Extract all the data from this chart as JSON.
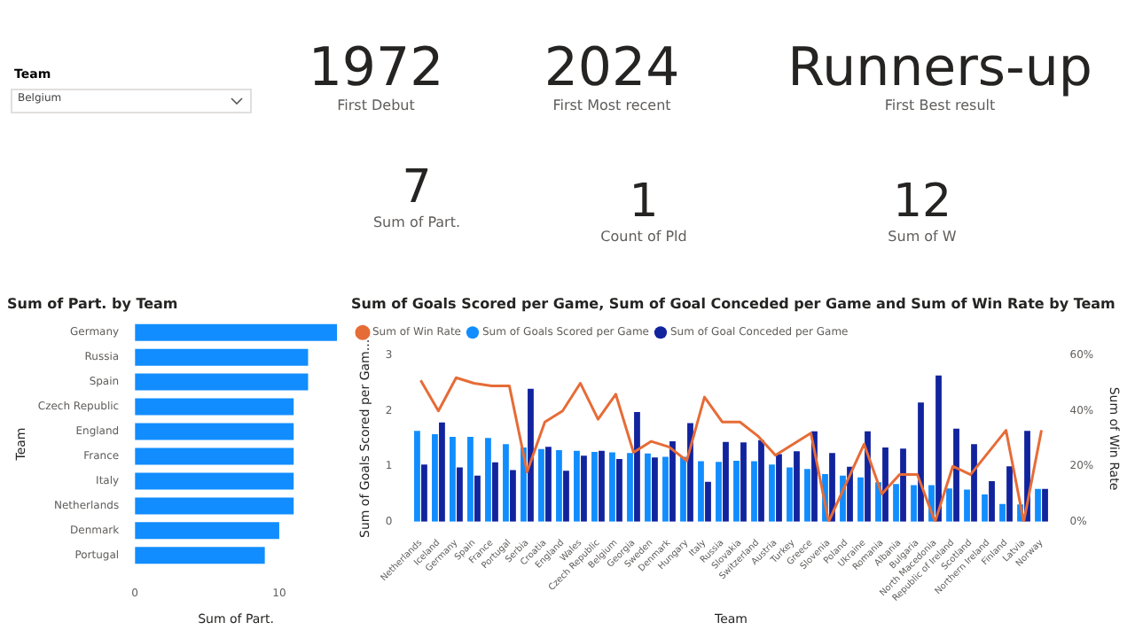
{
  "chart_data": [
    {
      "type": "other",
      "annotations": [
        "Team",
        "Belgium",
        "1972",
        "First Debut",
        "2024",
        "First Most recent",
        "Runners-up",
        "First Best result",
        "7",
        "Sum of Part.",
        "1",
        "Count of Pld",
        "12",
        "Sum of W"
      ]
    },
    {
      "type": "bar",
      "orientation": "horizontal",
      "title": "Sum of Part. by Team",
      "xlabel": "Sum of Part.",
      "ylabel": "Team",
      "categories": [
        "Germany",
        "Russia",
        "Spain",
        "Czech Republic",
        "England",
        "France",
        "Italy",
        "Netherlands",
        "Denmark",
        "Portugal"
      ],
      "values": [
        14,
        12,
        12,
        11,
        11,
        11,
        11,
        11,
        10,
        9
      ],
      "color": "#118dff",
      "xlim": [
        0,
        14
      ],
      "xticks": [
        0,
        10
      ]
    },
    {
      "type": "bar",
      "title": "Sum of Goals Scored per Game, Sum of Goal Conceded per Game and Sum of Win Rate by Team",
      "xlabel": "Team",
      "ylabel": "Sum of Goals Scored per Gam...",
      "y2label": "Sum of Win Rate",
      "legend": "top left",
      "categories": [
        "Netherlands",
        "Iceland",
        "Germany",
        "Spain",
        "France",
        "Portugal",
        "Serbia",
        "Croatia",
        "England",
        "Wales",
        "Czech Republic",
        "Belgium",
        "Georgia",
        "Sweden",
        "Denmark",
        "Hungary",
        "Italy",
        "Russia",
        "Slovakia",
        "Switzerland",
        "Austria",
        "Turkey",
        "Greece",
        "Slovenia",
        "Poland",
        "Ukraine",
        "Romania",
        "Albania",
        "Bulgaria",
        "North Macedonia",
        "Republic of Ireland",
        "Scotland",
        "Northern Ireland",
        "Finland",
        "Latvia",
        "Norway"
      ],
      "series": [
        {
          "name": "Sum of Goals Scored per Game",
          "color": "#118dff",
          "values": [
            1.64,
            1.58,
            1.53,
            1.53,
            1.51,
            1.4,
            1.34,
            1.31,
            1.29,
            1.28,
            1.26,
            1.25,
            1.24,
            1.23,
            1.17,
            1.17,
            1.09,
            1.08,
            1.1,
            1.09,
            1.03,
            0.98,
            0.95,
            0.86,
            0.83,
            0.8,
            0.71,
            0.68,
            0.66,
            0.66,
            0.6,
            0.58,
            0.49,
            0.32,
            0.31,
            0.59
          ]
        },
        {
          "name": "Sum of Goal Conceded per Game",
          "color": "#12239e",
          "values": [
            1.03,
            1.79,
            0.98,
            0.83,
            1.07,
            0.93,
            2.4,
            1.35,
            0.92,
            1.19,
            1.28,
            1.13,
            1.98,
            1.16,
            1.45,
            1.78,
            0.72,
            1.44,
            1.43,
            1.47,
            1.22,
            1.27,
            1.63,
            1.24,
            0.99,
            1.63,
            1.34,
            1.32,
            2.15,
            2.64,
            1.68,
            1.4,
            0.73,
            1.0,
            1.64,
            0.59
          ]
        },
        {
          "name": "Sum of Win Rate",
          "type": "line",
          "axis": "y2",
          "color": "#e66c37",
          "values": [
            51,
            40,
            52,
            50,
            49,
            49,
            18,
            36,
            40,
            50,
            37,
            46,
            25,
            29,
            27,
            22,
            45,
            36,
            36,
            31,
            24,
            28,
            32,
            0,
            14,
            28,
            10,
            17,
            17,
            0,
            20,
            17,
            25,
            33,
            0,
            33
          ]
        }
      ],
      "ylim": [
        0,
        3
      ],
      "yticks": [
        0,
        1,
        2,
        3
      ],
      "y2lim": [
        0,
        60
      ],
      "y2ticks": [
        {
          "value": 0,
          "label": "0%"
        },
        {
          "value": 20,
          "label": "20%"
        },
        {
          "value": 40,
          "label": "40%"
        },
        {
          "value": 60,
          "label": "60%"
        }
      ]
    }
  ]
}
